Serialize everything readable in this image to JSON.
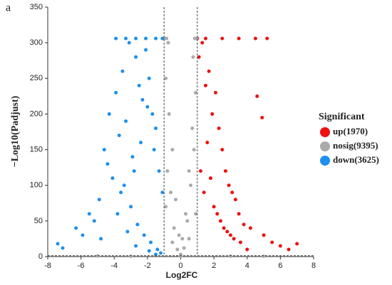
{
  "chart_data": {
    "type": "scatter",
    "panel_label": "a",
    "x_label": "Log2FC",
    "y_label": "−Log10(Padjust)",
    "legend_title": "Significant",
    "legend_position": "right",
    "xlim": [
      -8,
      8
    ],
    "xticks": [
      -8,
      -6,
      -4,
      -2,
      0,
      2,
      4,
      6,
      8
    ],
    "ylim": [
      0,
      350
    ],
    "yticks": [
      0,
      50,
      100,
      150,
      200,
      250,
      300,
      350
    ],
    "thresholds": {
      "x": [
        -1,
        1
      ],
      "y": 1.3
    },
    "series": [
      {
        "name": "up(1970)",
        "color": "#ee1111",
        "x": [
          1.1,
          1.3,
          1.5,
          1.7,
          1.9,
          2.1,
          2.3,
          2.5,
          2.7,
          2.9,
          3.1,
          3.3,
          3.5,
          3.8,
          4.2,
          4.6,
          4.9,
          5.0,
          5.5,
          6.0,
          6.5,
          7.0,
          1.2,
          1.6,
          2.0,
          2.4,
          2.8,
          3.2,
          3.6,
          4.0,
          1.4,
          1.8,
          2.2,
          2.6,
          3.0,
          1.0,
          1.5,
          2.5,
          3.5,
          4.5,
          5.2
        ],
        "values": [
          280,
          300,
          240,
          260,
          200,
          230,
          180,
          150,
          120,
          100,
          90,
          80,
          60,
          45,
          40,
          225,
          195,
          30,
          20,
          15,
          10,
          18,
          120,
          160,
          70,
          50,
          35,
          25,
          20,
          10,
          90,
          110,
          60,
          40,
          30,
          306,
          306,
          306,
          306,
          306,
          306
        ]
      },
      {
        "name": "nosig(9395)",
        "color": "#aaaaaa",
        "x": [
          -0.9,
          -0.7,
          -0.5,
          -0.3,
          -0.1,
          0.1,
          0.3,
          0.5,
          0.7,
          0.9,
          -0.8,
          -0.6,
          -0.4,
          -0.2,
          0.0,
          0.2,
          0.4,
          0.6,
          0.8,
          -0.95,
          -0.85,
          0.85,
          0.95,
          -0.75,
          0.75,
          -0.9,
          -0.5,
          0.5,
          0.9,
          -3.0,
          -5.0,
          3.0,
          5.0,
          0.0
        ],
        "values": [
          250,
          200,
          150,
          80,
          30,
          25,
          60,
          120,
          180,
          230,
          120,
          90,
          40,
          10,
          3,
          12,
          50,
          100,
          150,
          306,
          306,
          306,
          306,
          300,
          280,
          70,
          20,
          25,
          60,
          0.5,
          0.8,
          0.6,
          0.4,
          0.5
        ]
      },
      {
        "name": "down(3625)",
        "color": "#1e90ee",
        "x": [
          -7.4,
          -7.1,
          -6.3,
          -5.9,
          -5.5,
          -5.2,
          -4.9,
          -4.6,
          -4.3,
          -4.1,
          -3.9,
          -3.7,
          -3.5,
          -3.3,
          -3.1,
          -2.9,
          -2.7,
          -2.5,
          -2.3,
          -2.1,
          -1.9,
          -1.7,
          -1.5,
          -1.3,
          -1.1,
          -3.8,
          -3.4,
          -3.0,
          -2.6,
          -2.2,
          -1.8,
          -1.4,
          -1.2,
          -4.4,
          -3.6,
          -2.8,
          -2.4,
          -2.0,
          -1.6,
          -4.8,
          -3.2,
          -2.7,
          -1.9,
          -1.5,
          -3.9,
          -3.3,
          -2.7,
          -2.1,
          -1.5,
          -1.1
        ],
        "values": [
          18,
          12,
          40,
          30,
          60,
          50,
          80,
          150,
          200,
          110,
          230,
          170,
          260,
          190,
          300,
          140,
          280,
          240,
          220,
          290,
          250,
          200,
          180,
          120,
          90,
          60,
          100,
          70,
          45,
          30,
          20,
          10,
          5,
          130,
          90,
          120,
          160,
          210,
          150,
          25,
          35,
          15,
          8,
          3,
          306,
          306,
          306,
          306,
          306,
          306
        ]
      }
    ]
  }
}
